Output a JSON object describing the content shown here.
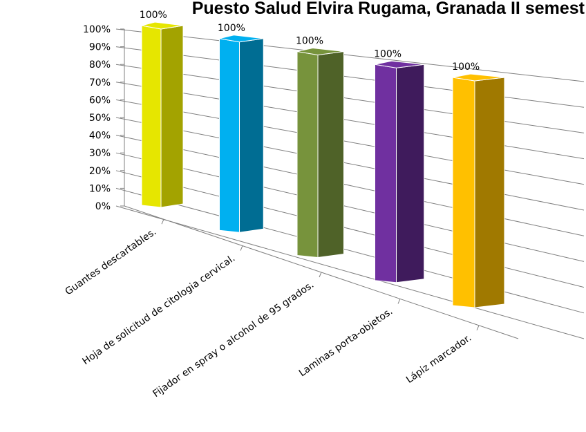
{
  "chart_data": {
    "type": "bar3d",
    "title": "Puesto Salud Elvira Rugama, Granada II semest",
    "categories": [
      "Guantes descartables.",
      "Hoja de solicitud de citologia cervical.",
      "Fijador en spray o alcohol de 95 grados.",
      "Laminas porta-objetos.",
      "Lápiz marcador."
    ],
    "values": [
      100,
      100,
      100,
      100,
      100
    ],
    "value_labels": [
      "100%",
      "100%",
      "100%",
      "100%",
      "100%"
    ],
    "colors": [
      "#e6e600",
      "#00b0f0",
      "#77933c",
      "#7030a0",
      "#ffc000"
    ],
    "side_colors": [
      "#a3a300",
      "#006d93",
      "#4f6228",
      "#3f1b5c",
      "#a07900"
    ],
    "ylim": [
      0,
      100
    ],
    "yticks": [
      {
        "value": 0,
        "label": "0%"
      },
      {
        "value": 10,
        "label": "10%"
      },
      {
        "value": 20,
        "label": "20%"
      },
      {
        "value": 30,
        "label": "30%"
      },
      {
        "value": 40,
        "label": "40%"
      },
      {
        "value": 50,
        "label": "50%"
      },
      {
        "value": 60,
        "label": "60%"
      },
      {
        "value": 70,
        "label": "70%"
      },
      {
        "value": 80,
        "label": "80%"
      },
      {
        "value": 90,
        "label": "90%"
      },
      {
        "value": 100,
        "label": "100%"
      }
    ],
    "grid": true
  }
}
